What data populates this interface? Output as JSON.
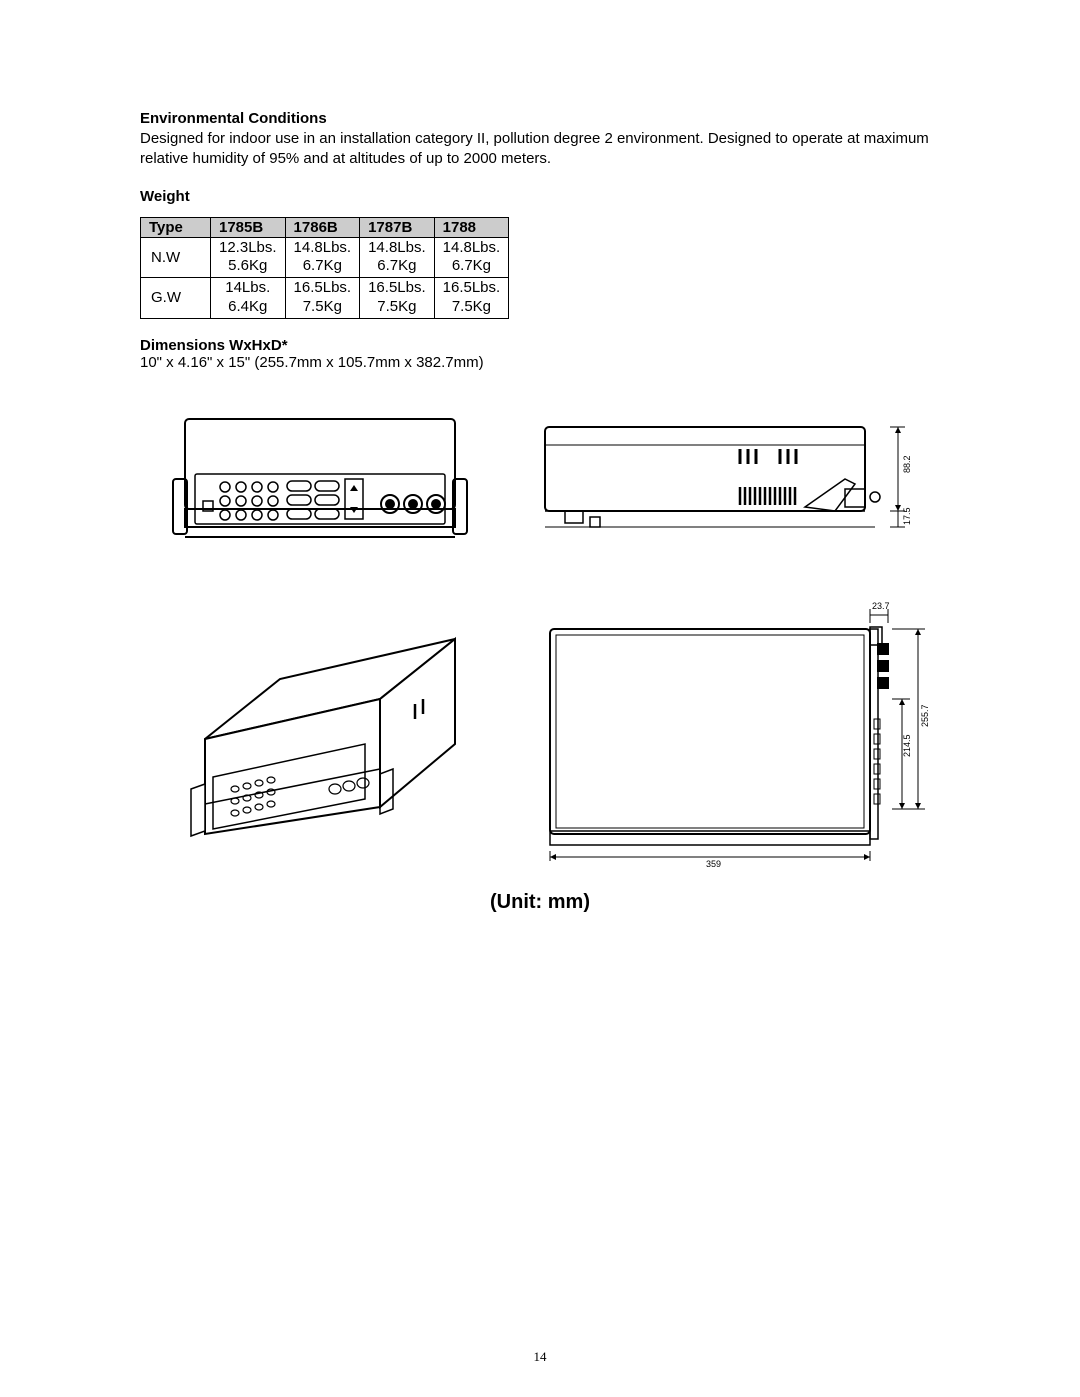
{
  "env": {
    "heading": "Environmental Conditions",
    "body": "Designed for indoor use in an installation category II, pollution degree 2 environment. Designed to operate at maximum relative humidity of 95% and at altitudes of up to 2000 meters."
  },
  "weight": {
    "heading": "Weight",
    "table": {
      "headers": [
        "Type",
        "1785B",
        "1786B",
        "1787B",
        "1788"
      ],
      "rows": [
        {
          "label": "N.W",
          "cells": [
            "12.3Lbs.\n5.6Kg",
            "14.8Lbs.\n6.7Kg",
            "14.8Lbs.\n6.7Kg",
            "14.8Lbs.\n6.7Kg"
          ]
        },
        {
          "label": "G.W",
          "cells": [
            "14Lbs.\n6.4Kg",
            "16.5Lbs.\n7.5Kg",
            "16.5Lbs.\n7.5Kg",
            "16.5Lbs.\n7.5Kg"
          ]
        }
      ],
      "header_bg": "#cccccc",
      "border_color": "#000000",
      "fontsize": 15
    }
  },
  "dimensions": {
    "heading": "Dimensions WxHxD*",
    "text": "10\" x 4.16\" x 15\" (255.7mm x 105.7mm x 382.7mm)"
  },
  "drawings": {
    "unit_label": "(Unit: mm)",
    "side": {
      "height_mm": "88.2",
      "foot_mm": "17.5"
    },
    "top": {
      "bracket_mm": "23.7",
      "inner_mm": "214.5",
      "outer_mm": "255.7",
      "depth_mm": "359"
    }
  },
  "page_number": "14",
  "colors": {
    "text": "#000000",
    "bg": "#ffffff",
    "line": "#000000"
  }
}
